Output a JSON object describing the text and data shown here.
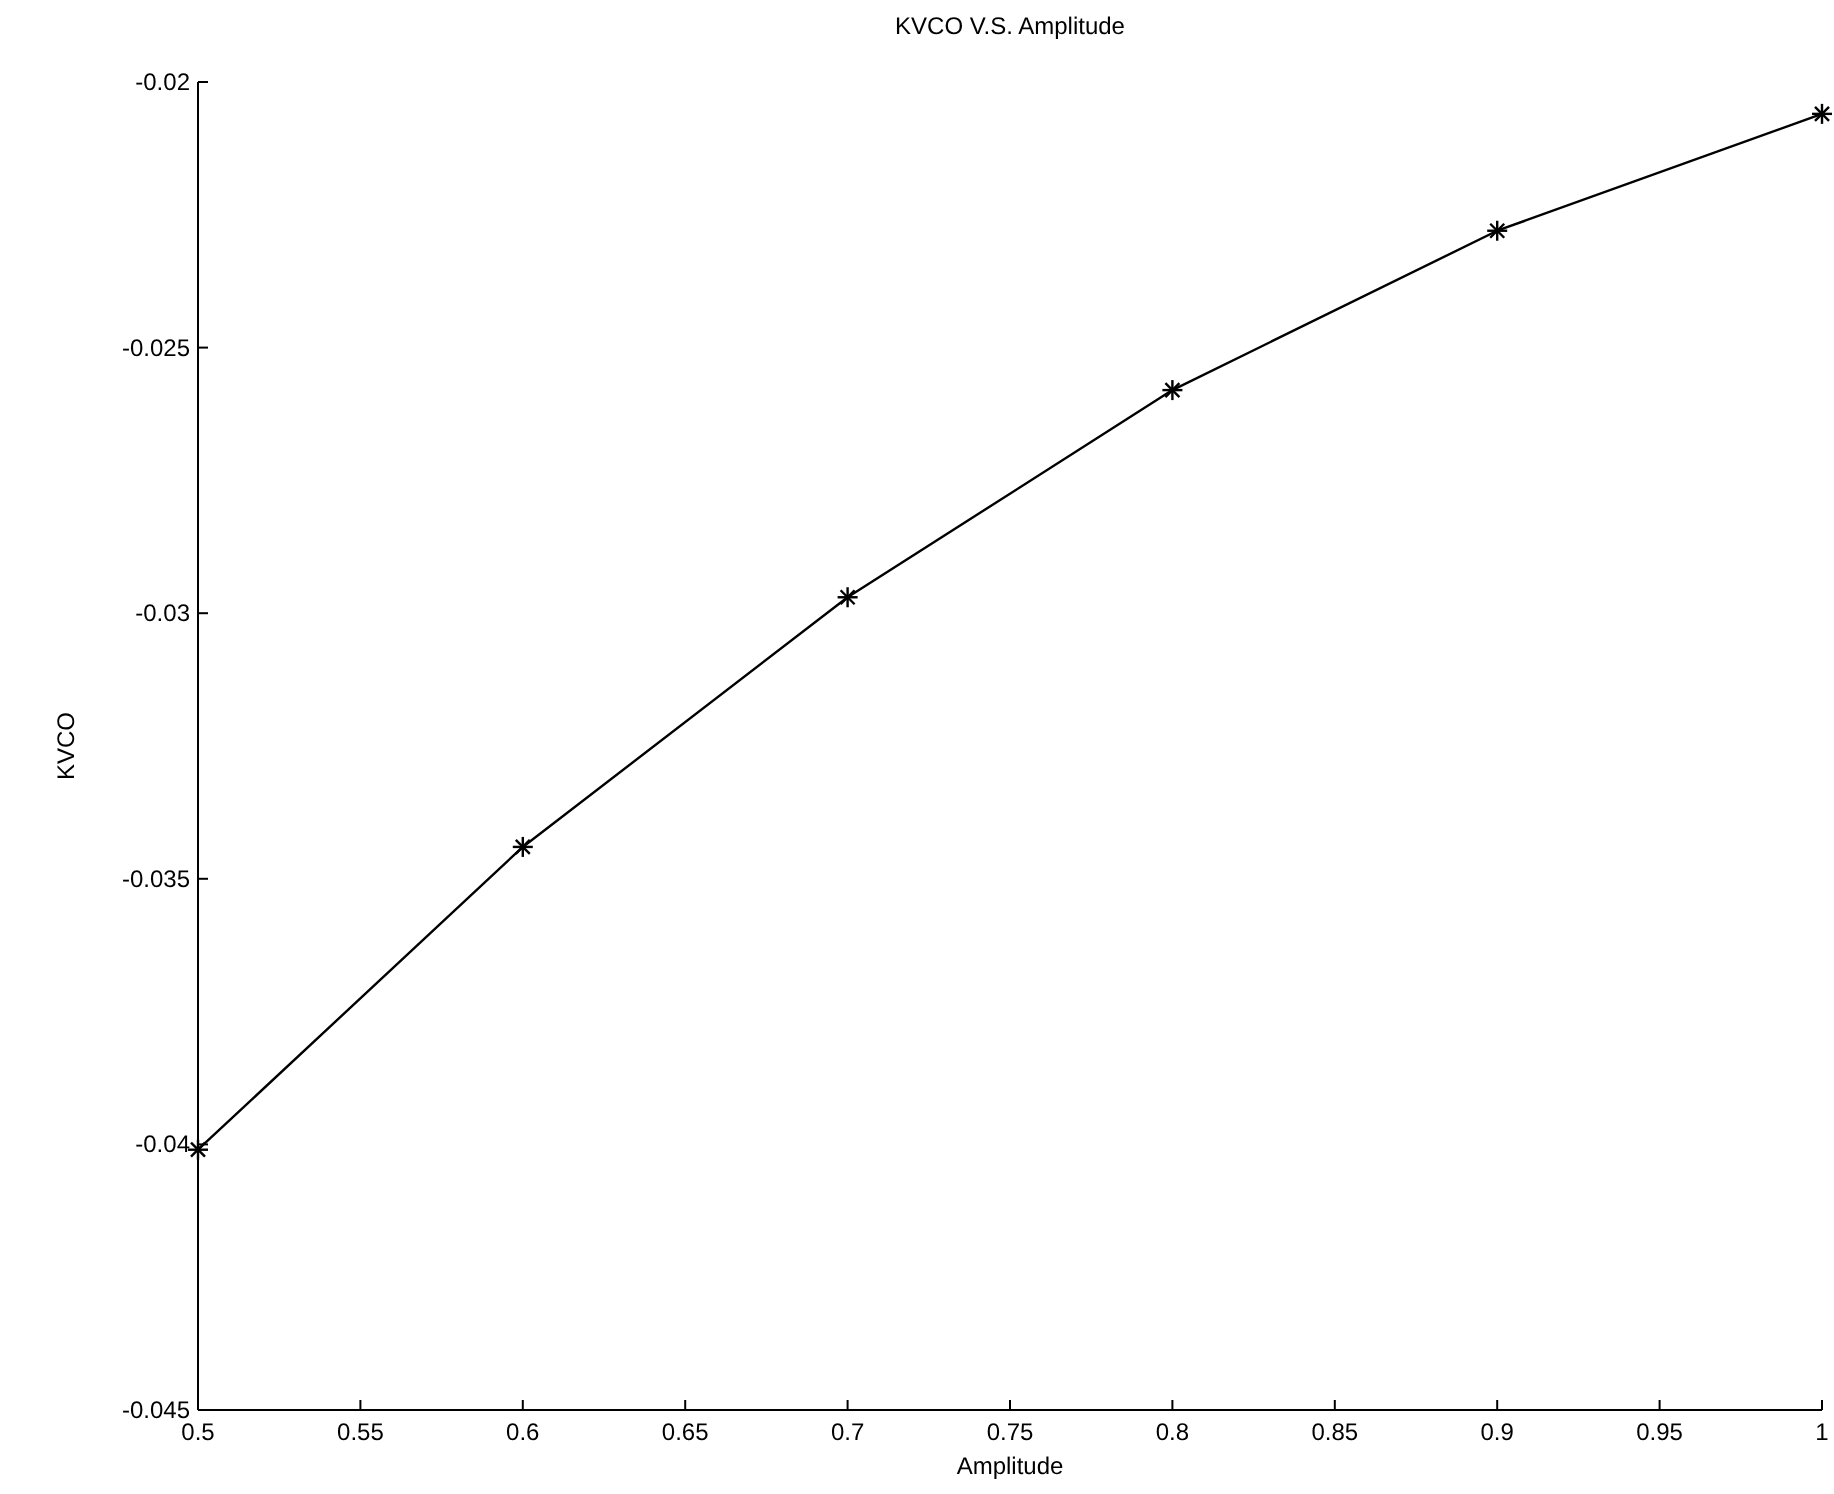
{
  "chart_data": {
    "type": "line",
    "title": "KVCO V.S. Amplitude",
    "xlabel": "Amplitude",
    "ylabel": "KVCO",
    "x": [
      0.5,
      0.6,
      0.7,
      0.8,
      0.9,
      1
    ],
    "series": [
      {
        "color": "#000000",
        "values": [
          -0.0401,
          -0.0344,
          -0.0297,
          -0.0258,
          -0.0228,
          -0.0206
        ]
      }
    ],
    "xlim": [
      0.5,
      1
    ],
    "xticks": [
      0.5,
      0.55,
      0.6,
      0.65,
      0.7,
      0.75,
      0.8,
      0.85,
      0.9,
      0.95,
      1
    ],
    "ylim": [
      -0.045,
      -0.02
    ],
    "yticks": [
      -0.045,
      -0.04,
      -0.035,
      -0.03,
      -0.025,
      -0.02
    ],
    "grid": false,
    "marker": "cross",
    "line_style": "solid"
  }
}
